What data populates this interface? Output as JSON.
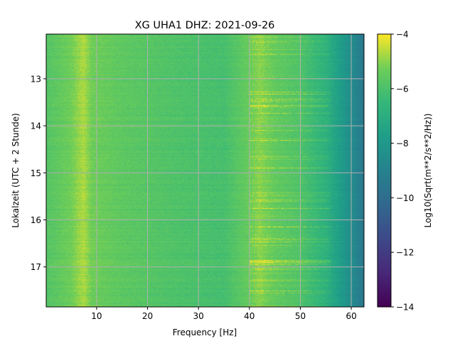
{
  "chart_data": {
    "type": "heatmap",
    "title": "XG UHA1  DHZ: 2021-09-26",
    "xlabel": "Frequency [Hz]",
    "ylabel": "Lokalzeit (UTC + 2 Stunde)",
    "xlim": [
      0.1,
      62.5
    ],
    "ylim": [
      17.85,
      12.05
    ],
    "x_ticks": [
      10,
      20,
      30,
      40,
      50,
      60
    ],
    "x_tick_labels": [
      "10",
      "20",
      "30",
      "40",
      "50",
      "60"
    ],
    "y_ticks": [
      13,
      14,
      15,
      16,
      17
    ],
    "y_tick_labels": [
      "13",
      "14",
      "15",
      "16",
      "17"
    ],
    "grid": true,
    "colormap": "viridis",
    "colorbar": {
      "label": "Log10(Sqrt(m**2/s**2/Hz))",
      "vmin": -14,
      "vmax": -4,
      "ticks": [
        -4,
        -6,
        -8,
        -10,
        -12,
        -14
      ],
      "tick_labels": [
        "−4",
        "−6",
        "−8",
        "−10",
        "−12",
        "−14"
      ]
    },
    "spectral_profile": {
      "frequency_hz": [
        0,
        5,
        6.5,
        7.5,
        9,
        15,
        25,
        35,
        40,
        42,
        45,
        50,
        55,
        58,
        60,
        62.5
      ],
      "log10_amplitude": [
        -5.8,
        -5.3,
        -4.9,
        -4.7,
        -5.3,
        -5.6,
        -5.9,
        -6.1,
        -5.4,
        -5.0,
        -5.5,
        -5.9,
        -6.8,
        -7.8,
        -8.5,
        -9.5
      ]
    },
    "features": [
      {
        "label": "persistent band",
        "frequency_hz": 7.5
      },
      {
        "label": "persistent band",
        "frequency_hz": 42.2
      },
      {
        "label": "intermittent lines",
        "frequency_hz_range": [
          40,
          56
        ]
      }
    ]
  }
}
